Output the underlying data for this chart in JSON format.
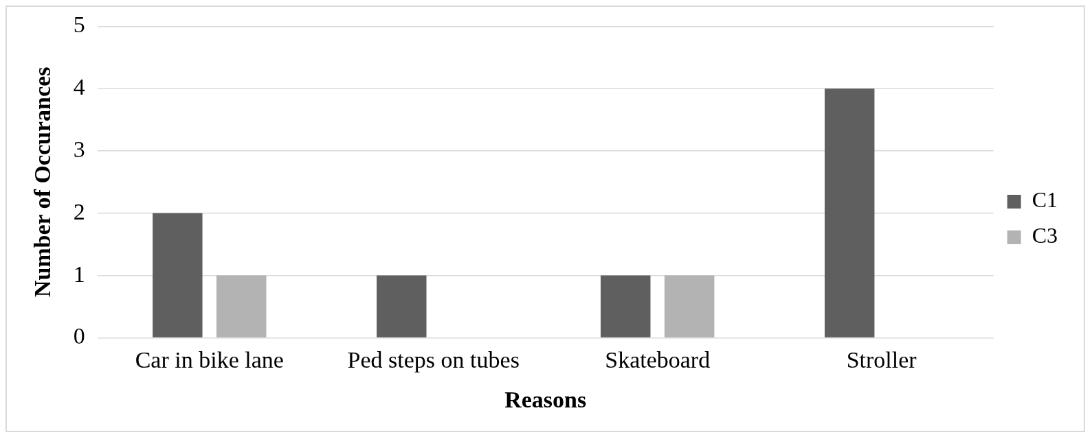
{
  "chart_data": {
    "type": "bar",
    "xlabel": "Reasons",
    "ylabel": "Number of Occurances",
    "categories": [
      "Car in bike lane",
      "Ped steps on tubes",
      "Skateboard",
      "Stroller"
    ],
    "series": [
      {
        "name": "C1",
        "color": "#5f5f5f",
        "values": [
          2,
          1,
          1,
          4
        ]
      },
      {
        "name": "C3",
        "color": "#b3b3b3",
        "values": [
          1,
          0,
          1,
          0
        ]
      }
    ],
    "ylim": [
      0,
      5
    ],
    "yticks": [
      0,
      1,
      2,
      3,
      4,
      5
    ],
    "grid": "y",
    "legend": "right"
  }
}
